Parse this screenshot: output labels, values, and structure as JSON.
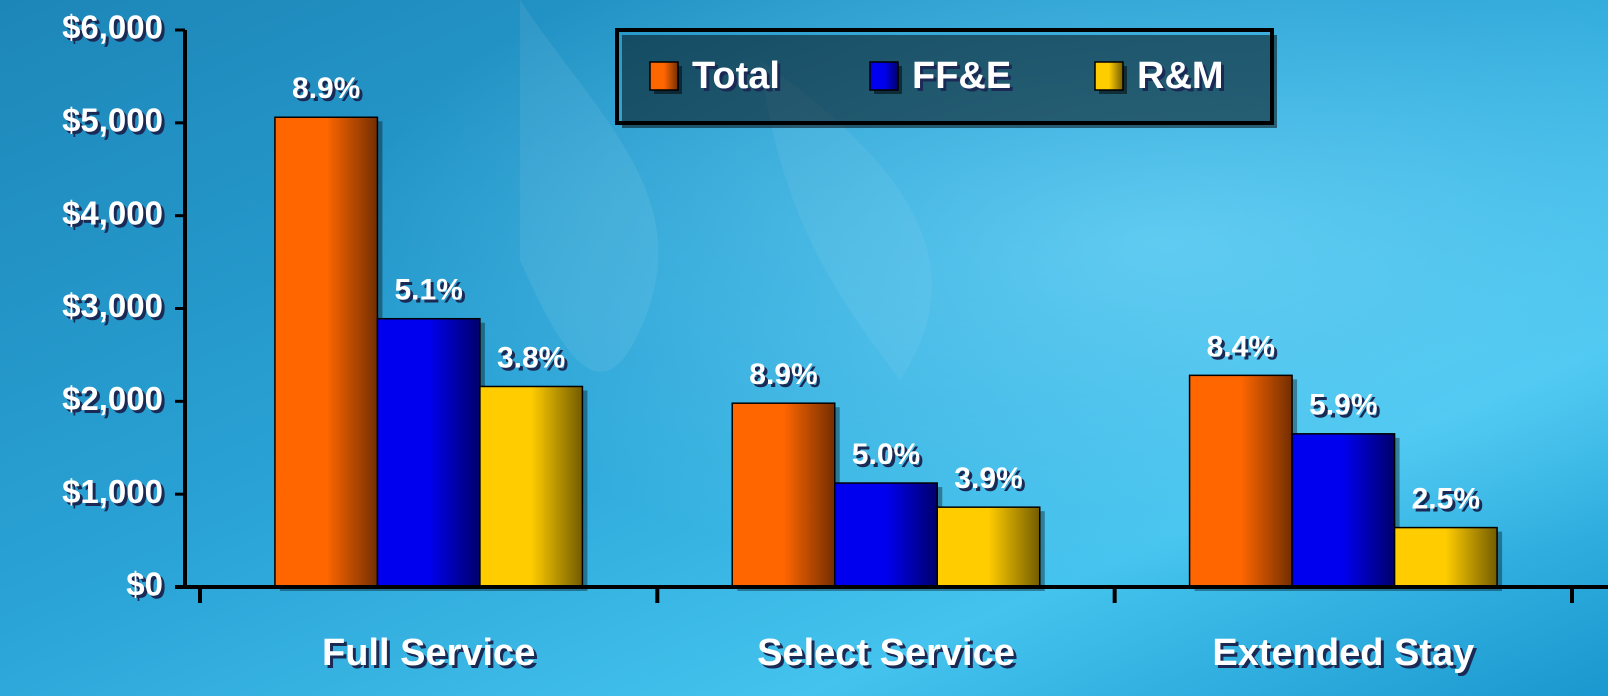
{
  "chart_data": {
    "type": "bar",
    "categories": [
      "Full Service",
      "Select Service",
      "Extended Stay"
    ],
    "series": [
      {
        "name": "Total",
        "color": "#ff6600",
        "values": [
          5060,
          1980,
          2280
        ],
        "annotations": [
          "8.9%",
          "8.9%",
          "8.4%"
        ]
      },
      {
        "name": "FF&E",
        "color": "#0000ee",
        "values": [
          2890,
          1120,
          1650
        ],
        "annotations": [
          "5.1%",
          "5.0%",
          "5.9%"
        ]
      },
      {
        "name": "R&M",
        "color": "#ffcc00",
        "values": [
          2160,
          860,
          640
        ],
        "annotations": [
          "3.8%",
          "3.9%",
          "2.5%"
        ]
      }
    ],
    "ylim": [
      0,
      6000
    ],
    "yticks": [
      {
        "value": 0,
        "label": "$0"
      },
      {
        "value": 1000,
        "label": "$1,000"
      },
      {
        "value": 2000,
        "label": "$2,000"
      },
      {
        "value": 3000,
        "label": "$3,000"
      },
      {
        "value": 4000,
        "label": "$4,000"
      },
      {
        "value": 5000,
        "label": "$5,000"
      },
      {
        "value": 6000,
        "label": "$6,000"
      }
    ],
    "legend": "top-right"
  }
}
